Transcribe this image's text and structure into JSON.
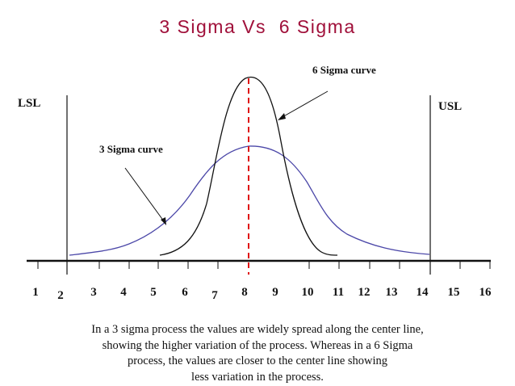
{
  "title": "3 Sigma Vs  6 Sigma",
  "labels": {
    "lsl": "LSL",
    "usl": "USL",
    "six_sigma_curve": "6 Sigma curve",
    "three_sigma_curve": "3 Sigma curve"
  },
  "axis_ticks": [
    "1",
    "2",
    "3",
    "4",
    "5",
    "6",
    "7",
    "8",
    "9",
    "10",
    "11",
    "12",
    "13",
    "14",
    "15",
    "16"
  ],
  "caption": [
    "In a 3 sigma process the values are widely spread along the center line,",
    "showing the higher variation of the process. Whereas  in a 6 Sigma",
    "process, the values are closer to the center line showing",
    "less variation in the process."
  ],
  "colors": {
    "title": "#a0103a",
    "three_sigma_curve": "#4b47a8",
    "six_sigma_curve": "#111111",
    "center_line": "#e01414"
  }
}
